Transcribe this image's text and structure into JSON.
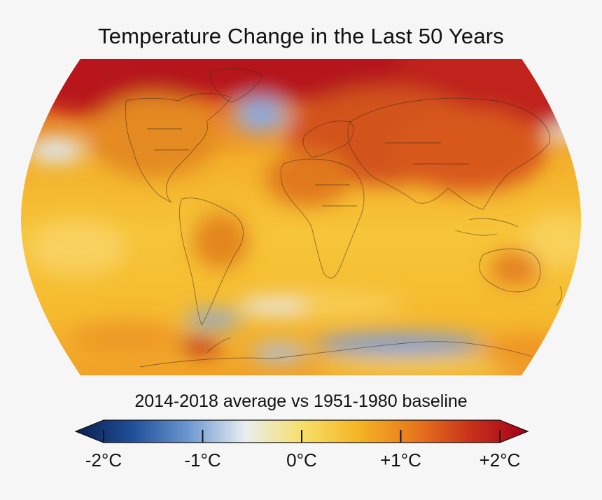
{
  "title": "Temperature Change in the Last 50 Years",
  "subtitle": "2014-2018 average vs 1951-1980 baseline",
  "colorbar": {
    "ticks": [
      {
        "label": "-2°C",
        "value": -2
      },
      {
        "label": "-1°C",
        "value": -1
      },
      {
        "label": "0°C",
        "value": 0
      },
      {
        "label": "+1°C",
        "value": 1
      },
      {
        "label": "+2°C",
        "value": 2
      }
    ],
    "range": [
      -2,
      2
    ],
    "colors": [
      "#0b1f4d",
      "#1f4e99",
      "#6c98d0",
      "#e9eef0",
      "#f7df6a",
      "#f5b524",
      "#e8781c",
      "#c8301a",
      "#a3001a"
    ]
  },
  "map": {
    "projection": "Robinson-style",
    "colors": {
      "warm": "#f5b92a",
      "warmer": "#e87e1f",
      "hottest": "#c01f16",
      "cool": "#dfe8f3",
      "cold": "#5b86c8",
      "coast": "#3a2a1a"
    }
  }
}
